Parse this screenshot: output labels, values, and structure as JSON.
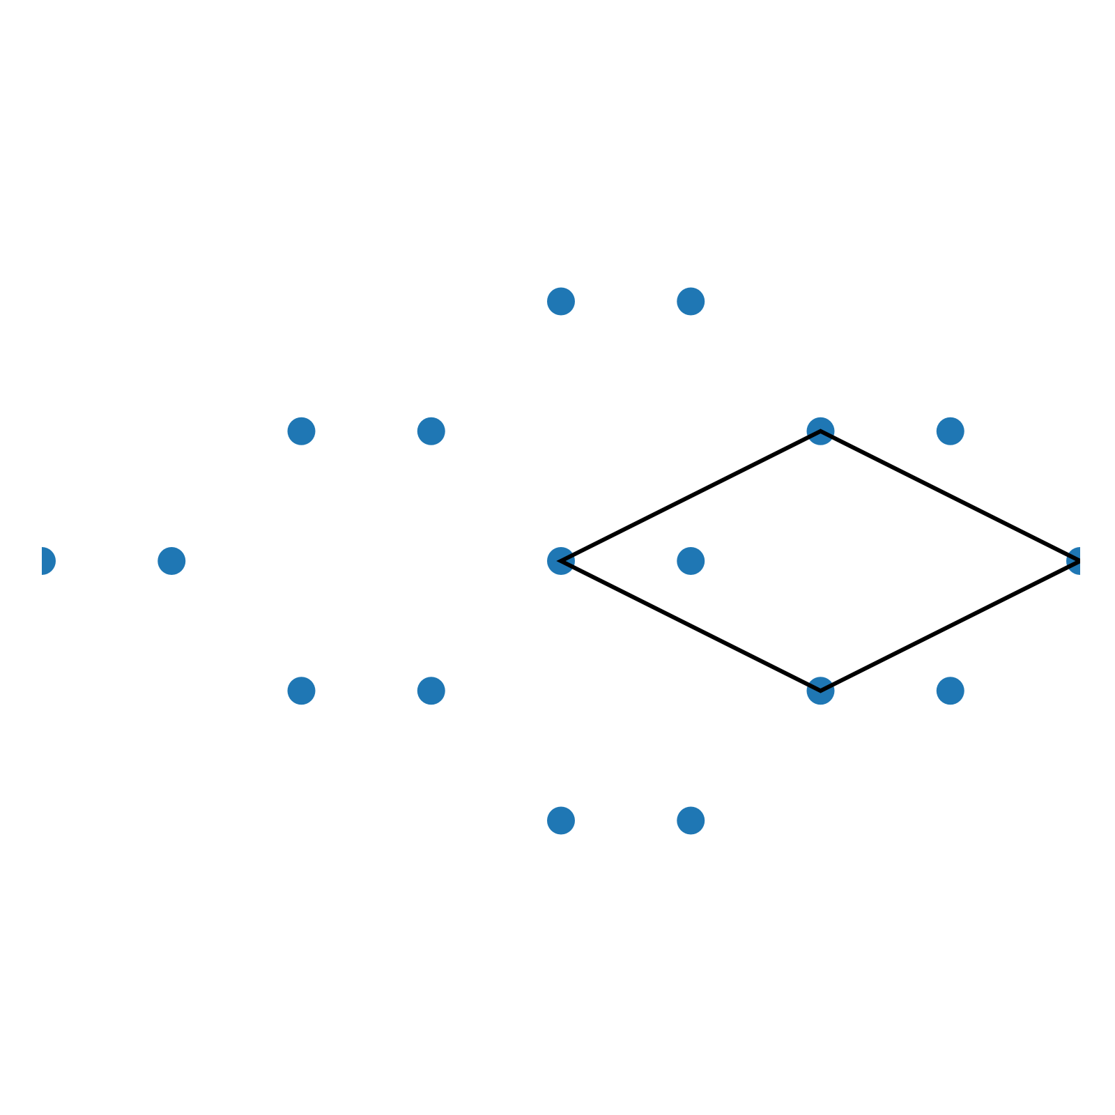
{
  "chart_data": {
    "type": "scatter",
    "title": "",
    "xlabel": "",
    "ylabel": "",
    "axes_visible": false,
    "grid": false,
    "xlim": [
      0,
      8
    ],
    "ylim": [
      -2,
      2
    ],
    "aspect": "equal",
    "points": [
      {
        "x": 0,
        "y": 0
      },
      {
        "x": 1,
        "y": 0
      },
      {
        "x": 2,
        "y": 1
      },
      {
        "x": 3,
        "y": 1
      },
      {
        "x": 2,
        "y": -1
      },
      {
        "x": 3,
        "y": -1
      },
      {
        "x": 4,
        "y": 2
      },
      {
        "x": 5,
        "y": 2
      },
      {
        "x": 4,
        "y": 0
      },
      {
        "x": 5,
        "y": 0
      },
      {
        "x": 4,
        "y": -2
      },
      {
        "x": 5,
        "y": -2
      },
      {
        "x": 6,
        "y": 1
      },
      {
        "x": 7,
        "y": 1
      },
      {
        "x": 6,
        "y": -1
      },
      {
        "x": 7,
        "y": -1
      },
      {
        "x": 8,
        "y": 0
      }
    ],
    "outline": {
      "shape": "rhombus",
      "vertices": [
        {
          "x": 4,
          "y": 0
        },
        {
          "x": 6,
          "y": 1
        },
        {
          "x": 8,
          "y": 0
        },
        {
          "x": 6,
          "y": -1
        }
      ]
    },
    "colors": {
      "points": "#1f77b4",
      "outline": "#000000"
    }
  }
}
